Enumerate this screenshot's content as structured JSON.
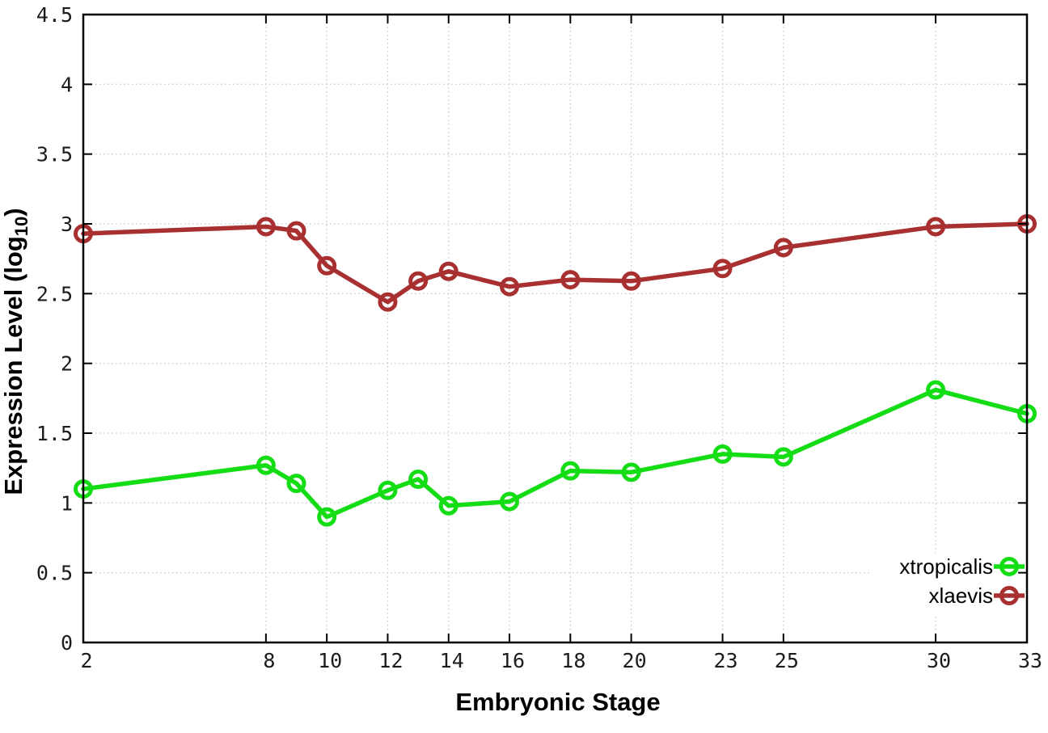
{
  "chart_data": {
    "type": "line",
    "title": "",
    "xlabel": "Embryonic Stage",
    "ylabel": "Expression Level (log10)",
    "ylabel_parts": {
      "main": "Expression Level (log",
      "sub": "10",
      "end": ")"
    },
    "x": [
      2,
      8,
      9,
      10,
      12,
      13,
      14,
      16,
      18,
      20,
      23,
      25,
      30,
      33
    ],
    "series": [
      {
        "name": "xtropicalis",
        "color": "#15dd15",
        "values": [
          1.1,
          1.27,
          1.14,
          0.9,
          1.09,
          1.17,
          0.98,
          1.01,
          1.23,
          1.22,
          1.35,
          1.33,
          1.81,
          1.64
        ]
      },
      {
        "name": "xlaevis",
        "color": "#a93030",
        "values": [
          2.93,
          2.98,
          2.95,
          2.7,
          2.44,
          2.59,
          2.66,
          2.55,
          2.6,
          2.59,
          2.68,
          2.83,
          2.98,
          3.0
        ]
      }
    ],
    "xticks": [
      2,
      8,
      10,
      12,
      14,
      16,
      18,
      20,
      23,
      25,
      30,
      33
    ],
    "yticks": [
      0,
      0.5,
      1,
      1.5,
      2,
      2.5,
      3,
      3.5,
      4,
      4.5
    ],
    "xlim": [
      2,
      33
    ],
    "ylim": [
      0,
      4.5
    ],
    "grid": true,
    "grid_style": "dotted",
    "marker": "open-circle",
    "legend_position": "bottom-right",
    "colors": {
      "background": "#ffffff",
      "border": "#000000",
      "grid": "#c2cccc",
      "tick_text": "#1c1c1c"
    }
  }
}
